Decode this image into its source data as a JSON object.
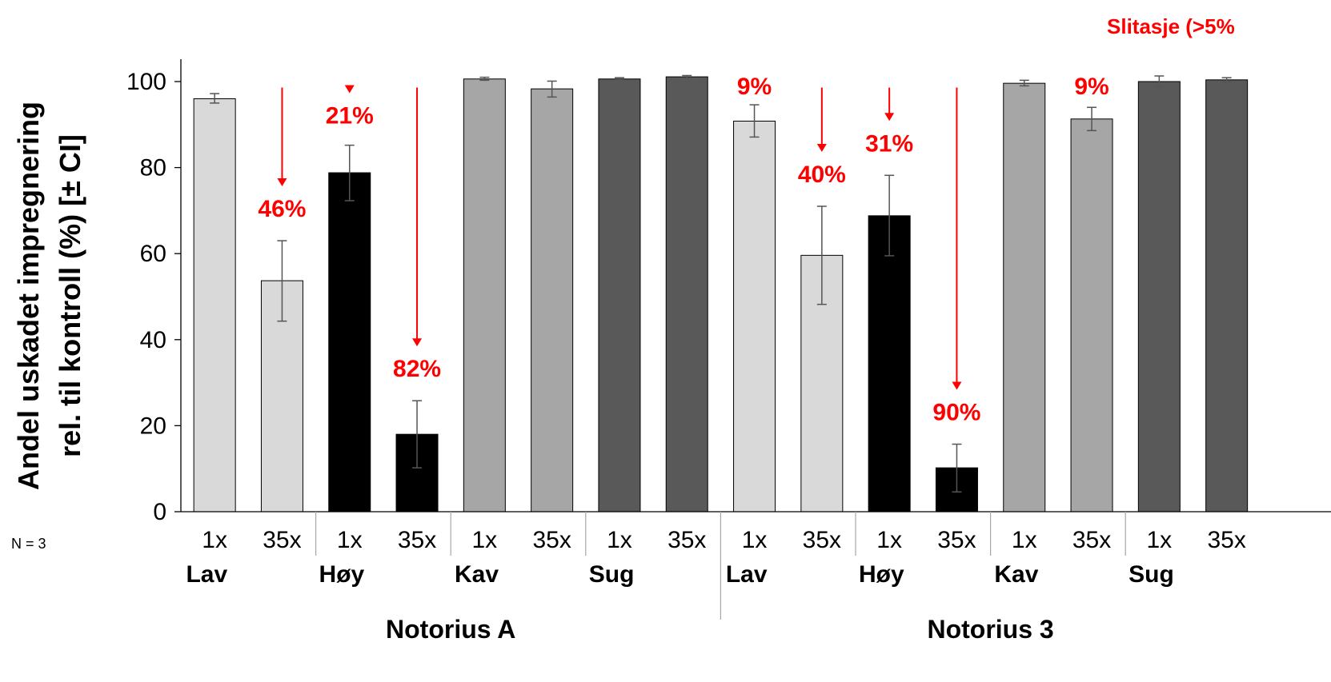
{
  "chart_data": {
    "type": "bar",
    "ylabel_line1": "Andel uskadet impregnering",
    "ylabel_line2": "rel. til kontroll (%) [± CI]",
    "ylim": [
      0,
      100
    ],
    "yticks": [
      "0",
      "20",
      "40",
      "60",
      "80",
      "100"
    ],
    "corner_label": "Slitasje (>5%",
    "n_label": "N =  3",
    "colors": {
      "Lav": "#d9d9d9",
      "Høy": "#000000",
      "Kav": "#a6a6a6",
      "Sug": "#595959",
      "annotation": "#ff0000"
    },
    "supergroups": [
      "Notorius A",
      "Notorius 3"
    ],
    "bars": [
      {
        "super": "Notorius A",
        "group": "Lav",
        "x": "1x",
        "value": 96.0,
        "ci": [
          95.0,
          97.2
        ]
      },
      {
        "super": "Notorius A",
        "group": "Lav",
        "x": "35x",
        "value": 53.7,
        "ci": [
          44.3,
          63.0
        ]
      },
      {
        "super": "Notorius A",
        "group": "Høy",
        "x": "1x",
        "value": 78.8,
        "ci": [
          72.3,
          85.2
        ]
      },
      {
        "super": "Notorius A",
        "group": "Høy",
        "x": "35x",
        "value": 18.0,
        "ci": [
          10.2,
          25.8
        ]
      },
      {
        "super": "Notorius A",
        "group": "Kav",
        "x": "1x",
        "value": 100.6,
        "ci": [
          100.3,
          101.0
        ]
      },
      {
        "super": "Notorius A",
        "group": "Kav",
        "x": "35x",
        "value": 98.3,
        "ci": [
          96.4,
          100.1
        ]
      },
      {
        "super": "Notorius A",
        "group": "Sug",
        "x": "1x",
        "value": 100.6,
        "ci": [
          100.4,
          100.9
        ]
      },
      {
        "super": "Notorius A",
        "group": "Sug",
        "x": "35x",
        "value": 101.1,
        "ci": [
          100.9,
          101.4
        ]
      },
      {
        "super": "Notorius 3",
        "group": "Lav",
        "x": "1x",
        "value": 90.8,
        "ci": [
          87.1,
          94.6
        ]
      },
      {
        "super": "Notorius 3",
        "group": "Lav",
        "x": "35x",
        "value": 59.6,
        "ci": [
          48.2,
          71.0
        ]
      },
      {
        "super": "Notorius 3",
        "group": "Høy",
        "x": "1x",
        "value": 68.8,
        "ci": [
          59.5,
          78.2
        ]
      },
      {
        "super": "Notorius 3",
        "group": "Høy",
        "x": "35x",
        "value": 10.2,
        "ci": [
          4.6,
          15.7
        ]
      },
      {
        "super": "Notorius 3",
        "group": "Kav",
        "x": "1x",
        "value": 99.6,
        "ci": [
          99.0,
          100.3
        ]
      },
      {
        "super": "Notorius 3",
        "group": "Kav",
        "x": "35x",
        "value": 91.3,
        "ci": [
          88.6,
          94.0
        ]
      },
      {
        "super": "Notorius 3",
        "group": "Sug",
        "x": "1x",
        "value": 100.0,
        "ci": [
          98.8,
          101.3
        ]
      },
      {
        "super": "Notorius 3",
        "group": "Sug",
        "x": "35x",
        "value": 100.4,
        "ci": [
          99.9,
          100.9
        ]
      }
    ],
    "annotations": [
      {
        "label": "46%",
        "bar": 1,
        "arrow": true
      },
      {
        "label": "21%",
        "bar": 2,
        "arrow": true
      },
      {
        "label": "82%",
        "bar": 3,
        "arrow": true
      },
      {
        "label": "9%",
        "bar": 8,
        "arrow": false
      },
      {
        "label": "40%",
        "bar": 9,
        "arrow": true
      },
      {
        "label": "31%",
        "bar": 10,
        "arrow": true
      },
      {
        "label": "90%",
        "bar": 11,
        "arrow": true
      },
      {
        "label": "9%",
        "bar": 13,
        "arrow": false
      }
    ]
  }
}
